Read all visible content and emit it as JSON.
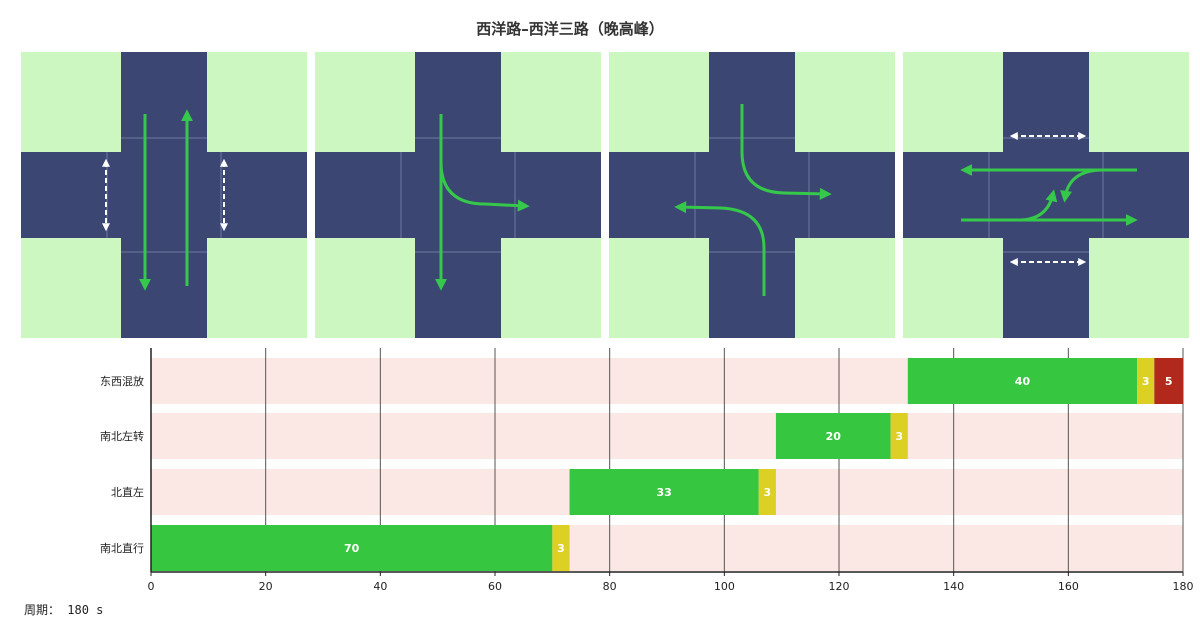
{
  "title": "西洋路–西洋三路（晚高峰）",
  "colors": {
    "road": "#3b4672",
    "corner": "#cdf7c1",
    "arrow": "#35c84a",
    "ped": "#ffffff",
    "green_bar": "#37c63f",
    "yellow_bar": "#dcd024",
    "red_bar": "#b2291c",
    "row_bg": "#fbe7e3"
  },
  "phases": [
    {
      "name": "phase-1-north-south-through",
      "icons": [
        "through-south-arrow-icon",
        "through-north-arrow-icon",
        "pedestrian-crossing-west-icon",
        "pedestrian-crossing-east-icon"
      ]
    },
    {
      "name": "phase-2-north-approach",
      "icons": [
        "through-south-arrow-icon",
        "left-turn-east-arrow-icon"
      ]
    },
    {
      "name": "phase-3-north-south-left",
      "icons": [
        "left-turn-east-arrow-icon",
        "left-turn-west-arrow-icon"
      ]
    },
    {
      "name": "phase-4-east-west-mixed",
      "icons": [
        "through-west-arrow-icon",
        "through-east-arrow-icon",
        "left-turn-north-arrow-icon",
        "left-turn-south-arrow-icon",
        "pedestrian-crossing-north-icon",
        "pedestrian-crossing-south-icon"
      ]
    }
  ],
  "chart_data": {
    "type": "bar",
    "orientation": "horizontal",
    "xlim": [
      0,
      180
    ],
    "xticks": [
      0,
      20,
      40,
      60,
      80,
      100,
      120,
      140,
      160,
      180
    ],
    "grid": true,
    "rows": [
      {
        "label": "东西混放",
        "segments": [
          {
            "type": "green",
            "start": 132,
            "duration": 40,
            "label": "40"
          },
          {
            "type": "yellow",
            "start": 172,
            "duration": 3,
            "label": "3"
          },
          {
            "type": "red",
            "start": 175,
            "duration": 5,
            "label": "5"
          }
        ]
      },
      {
        "label": "南北左转",
        "segments": [
          {
            "type": "green",
            "start": 109,
            "duration": 20,
            "label": "20"
          },
          {
            "type": "yellow",
            "start": 129,
            "duration": 3,
            "label": "3"
          }
        ]
      },
      {
        "label": "北直左",
        "segments": [
          {
            "type": "green",
            "start": 73,
            "duration": 33,
            "label": "33"
          },
          {
            "type": "yellow",
            "start": 106,
            "duration": 3,
            "label": "3"
          }
        ]
      },
      {
        "label": "南北直行",
        "segments": [
          {
            "type": "green",
            "start": 0,
            "duration": 70,
            "label": "70"
          },
          {
            "type": "yellow",
            "start": 70,
            "duration": 3,
            "label": "3"
          }
        ]
      }
    ]
  },
  "cycle_label": "周期：",
  "cycle_value": "180 s"
}
